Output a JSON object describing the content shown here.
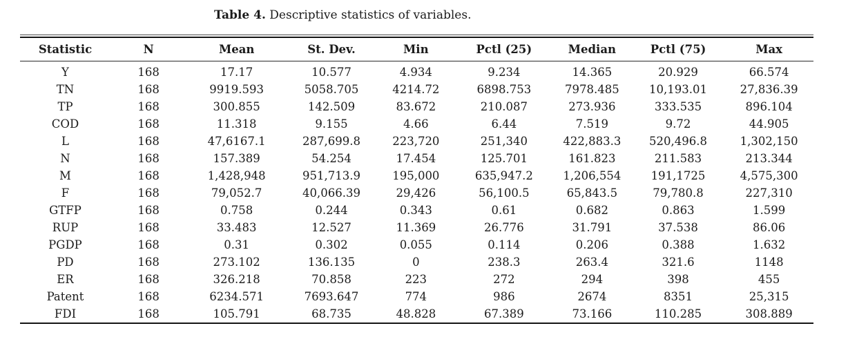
{
  "caption": {
    "label": "Table 4.",
    "text": "Descriptive statistics of variables."
  },
  "table": {
    "columns": [
      "Statistic",
      "N",
      "Mean",
      "St. Dev.",
      "Min",
      "Pctl (25)",
      "Median",
      "Pctl (75)",
      "Max"
    ],
    "rows": [
      [
        "Y",
        "168",
        "17.17",
        "10.577",
        "4.934",
        "9.234",
        "14.365",
        "20.929",
        "66.574"
      ],
      [
        "TN",
        "168",
        "9919.593",
        "5058.705",
        "4214.72",
        "6898.753",
        "7978.485",
        "10,193.01",
        "27,836.39"
      ],
      [
        "TP",
        "168",
        "300.855",
        "142.509",
        "83.672",
        "210.087",
        "273.936",
        "333.535",
        "896.104"
      ],
      [
        "COD",
        "168",
        "11.318",
        "9.155",
        "4.66",
        "6.44",
        "7.519",
        "9.72",
        "44.905"
      ],
      [
        "L",
        "168",
        "47,6167.1",
        "287,699.8",
        "223,720",
        "251,340",
        "422,883.3",
        "520,496.8",
        "1,302,150"
      ],
      [
        "N",
        "168",
        "157.389",
        "54.254",
        "17.454",
        "125.701",
        "161.823",
        "211.583",
        "213.344"
      ],
      [
        "M",
        "168",
        "1,428,948",
        "951,713.9",
        "195,000",
        "635,947.2",
        "1,206,554",
        "191,1725",
        "4,575,300"
      ],
      [
        "F",
        "168",
        "79,052.7",
        "40,066.39",
        "29,426",
        "56,100.5",
        "65,843.5",
        "79,780.8",
        "227,310"
      ],
      [
        "GTFP",
        "168",
        "0.758",
        "0.244",
        "0.343",
        "0.61",
        "0.682",
        "0.863",
        "1.599"
      ],
      [
        "RUP",
        "168",
        "33.483",
        "12.527",
        "11.369",
        "26.776",
        "31.791",
        "37.538",
        "86.06"
      ],
      [
        "PGDP",
        "168",
        "0.31",
        "0.302",
        "0.055",
        "0.114",
        "0.206",
        "0.388",
        "1.632"
      ],
      [
        "PD",
        "168",
        "273.102",
        "136.135",
        "0",
        "238.3",
        "263.4",
        "321.6",
        "1148"
      ],
      [
        "ER",
        "168",
        "326.218",
        "70.858",
        "223",
        "272",
        "294",
        "398",
        "455"
      ],
      [
        "Patent",
        "168",
        "6234.571",
        "7693.647",
        "774",
        "986",
        "2674",
        "8351",
        "25,315"
      ],
      [
        "FDI",
        "168",
        "105.791",
        "68.735",
        "48.828",
        "67.389",
        "73.166",
        "110.285",
        "308.889"
      ]
    ],
    "column_widths_pct": [
      11.4,
      9.6,
      12.6,
      11.3,
      10.0,
      12.2,
      10.0,
      11.7,
      11.2
    ]
  }
}
